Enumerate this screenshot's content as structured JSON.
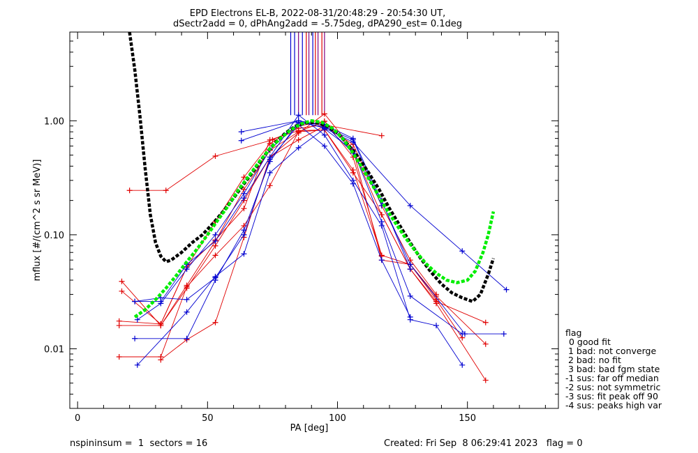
{
  "header": {
    "title_line1": "EPD Electrons EL-B, 2022-08-31/20:48:29 - 20:54:30 UT,",
    "title_line2": "dSectr2add = 0, dPhAng2add = -5.75deg, dPA290_est=   0.1deg"
  },
  "footer": {
    "left": "nspininsum =  1  sectors = 16",
    "right": "Created: Fri Sep  8 06:29:41 2023   flag = 0"
  },
  "legend": {
    "title": "flag",
    "items": [
      "0 good fit",
      " 1 bad: not converge",
      " 2 bad: no fit",
      " 3 bad: bad fgm state",
      "-1 sus: far off median",
      "-2 sus: not symmetric",
      "-3 sus: fit peak off 90",
      "-4 sus: peaks high var"
    ]
  },
  "colors": {
    "red": "#e00000",
    "blue": "#0000d0",
    "purple": "#800080",
    "black_fit": "#000000",
    "green_fit": "#00ee00"
  },
  "chart_data": {
    "type": "line",
    "xlabel": "PA [deg]",
    "ylabel": "mflux [#/(cm^2 s sr MeV)]",
    "xlim": [
      -3,
      185
    ],
    "ylim": [
      0.003,
      6.0
    ],
    "yscale": "log",
    "xticks": [
      0,
      50,
      100,
      150
    ],
    "xtick_labels": [
      "0",
      "50",
      "100",
      "150"
    ],
    "yticks": [
      0.01,
      0.1,
      1.0
    ],
    "ytick_labels": [
      "0.01",
      "0.10",
      "1.00"
    ],
    "series": [
      {
        "color": "red",
        "x": [
          20,
          34,
          53,
          75,
          85,
          95,
          117
        ],
        "y": [
          0.245,
          0.245,
          0.49,
          0.68,
          0.86,
          0.92,
          0.74
        ]
      },
      {
        "color": "red",
        "x": [
          16,
          32,
          42,
          53,
          64,
          74,
          85,
          95,
          106,
          117,
          128,
          138,
          148
        ],
        "y": [
          0.016,
          0.016,
          0.036,
          0.088,
          0.25,
          0.55,
          0.8,
          0.99,
          0.48,
          0.066,
          0.055,
          0.027,
          0.0125
        ]
      },
      {
        "color": "red",
        "x": [
          16,
          32,
          42,
          53,
          64,
          74,
          85,
          95,
          106,
          117,
          128,
          138,
          157
        ],
        "y": [
          0.0175,
          0.0165,
          0.052,
          0.13,
          0.32,
          0.63,
          0.9,
          0.99,
          0.55,
          0.15,
          0.05,
          0.025,
          0.0053
        ]
      },
      {
        "color": "red",
        "x": [
          17,
          32,
          42,
          53,
          64,
          74,
          85,
          95,
          106,
          117,
          128,
          138,
          157
        ],
        "y": [
          0.039,
          0.016,
          0.034,
          0.08,
          0.2,
          0.48,
          0.78,
          1.15,
          0.56,
          0.06,
          0.055,
          0.029,
          0.011
        ]
      },
      {
        "color": "red",
        "x": [
          16,
          32,
          42,
          53,
          64,
          74,
          85,
          95,
          106,
          117,
          128,
          138,
          157
        ],
        "y": [
          0.0085,
          0.0085,
          0.035,
          0.066,
          0.12,
          0.27,
          0.8,
          0.83,
          0.35,
          0.15,
          0.05,
          0.026,
          0.017
        ]
      },
      {
        "color": "red",
        "x": [
          17,
          32,
          42,
          53,
          64,
          74,
          85,
          95,
          106,
          117
        ],
        "y": [
          0.032,
          0.0165,
          0.052,
          0.09,
          0.17,
          0.68,
          0.82,
          0.83,
          0.37,
          0.065
        ]
      },
      {
        "color": "red",
        "x": [
          32,
          42,
          53,
          64,
          74,
          85,
          95,
          106,
          117,
          128,
          138
        ],
        "y": [
          0.008,
          0.012,
          0.017,
          0.095,
          0.48,
          0.68,
          0.9,
          0.62,
          0.18,
          0.06,
          0.03
        ]
      },
      {
        "color": "blue",
        "x": [
          63,
          85,
          95,
          106,
          128,
          148,
          165
        ],
        "y": [
          0.8,
          1.0,
          0.86,
          0.65,
          0.18,
          0.072,
          0.033
        ]
      },
      {
        "color": "blue",
        "x": [
          63,
          85,
          95,
          106,
          128,
          149,
          164
        ],
        "y": [
          0.67,
          1.0,
          0.92,
          0.7,
          0.055,
          0.0135,
          0.0135
        ]
      },
      {
        "color": "blue",
        "x": [
          22,
          32,
          42,
          53,
          64,
          74,
          85,
          95,
          106,
          117,
          128,
          138,
          148
        ],
        "y": [
          0.026,
          0.026,
          0.055,
          0.088,
          0.21,
          0.48,
          1.12,
          0.75,
          0.3,
          0.12,
          0.018,
          0.016,
          0.0072
        ]
      },
      {
        "color": "blue",
        "x": [
          23,
          42,
          53,
          64,
          74,
          85,
          95,
          106,
          117,
          128,
          148
        ],
        "y": [
          0.0072,
          0.021,
          0.043,
          0.068,
          0.35,
          0.58,
          0.85,
          0.55,
          0.13,
          0.029,
          0.0135
        ]
      },
      {
        "color": "blue",
        "x": [
          22,
          42,
          53,
          64,
          74,
          85,
          95,
          106,
          117
        ],
        "y": [
          0.0123,
          0.0123,
          0.04,
          0.11,
          0.44,
          0.97,
          0.88,
          0.68,
          0.18
        ]
      },
      {
        "color": "blue",
        "x": [
          22,
          32,
          42,
          53,
          64,
          74,
          85,
          95,
          106,
          117,
          128
        ],
        "y": [
          0.026,
          0.028,
          0.027,
          0.042,
          0.1,
          0.46,
          0.92,
          0.6,
          0.28,
          0.06,
          0.019
        ]
      },
      {
        "color": "blue",
        "x": [
          23,
          32,
          42,
          53,
          64,
          74,
          85,
          95,
          106,
          117,
          128
        ],
        "y": [
          0.018,
          0.025,
          0.05,
          0.1,
          0.23,
          0.56,
          0.95,
          0.93,
          0.52,
          0.2,
          0.05
        ]
      }
    ],
    "fits": [
      {
        "color": "black_fit",
        "x": [
          20,
          22,
          24,
          26,
          28,
          30,
          32,
          34,
          36,
          40,
          44,
          48,
          52,
          56,
          60,
          64,
          68,
          72,
          76,
          80,
          84,
          88,
          90,
          92,
          96,
          100,
          104,
          108,
          112,
          116,
          120,
          124,
          128,
          132,
          136,
          140,
          144,
          148,
          152,
          155,
          158,
          160
        ],
        "y": [
          6.0,
          2.8,
          1.1,
          0.38,
          0.15,
          0.085,
          0.065,
          0.058,
          0.06,
          0.07,
          0.085,
          0.1,
          0.125,
          0.16,
          0.21,
          0.28,
          0.37,
          0.5,
          0.64,
          0.78,
          0.9,
          0.96,
          0.97,
          0.96,
          0.9,
          0.78,
          0.62,
          0.48,
          0.35,
          0.25,
          0.17,
          0.12,
          0.085,
          0.062,
          0.047,
          0.037,
          0.031,
          0.028,
          0.026,
          0.03,
          0.045,
          0.062
        ]
      },
      {
        "color": "green_fit",
        "x": [
          22,
          26,
          30,
          34,
          38,
          42,
          46,
          50,
          54,
          58,
          62,
          66,
          70,
          74,
          78,
          82,
          86,
          90,
          94,
          98,
          102,
          106,
          110,
          114,
          118,
          122,
          126,
          130,
          134,
          138,
          142,
          146,
          150,
          153,
          156,
          158,
          160
        ],
        "y": [
          0.019,
          0.022,
          0.027,
          0.034,
          0.044,
          0.058,
          0.075,
          0.1,
          0.135,
          0.18,
          0.25,
          0.33,
          0.44,
          0.57,
          0.7,
          0.83,
          0.94,
          1.0,
          0.97,
          0.86,
          0.7,
          0.52,
          0.37,
          0.26,
          0.18,
          0.13,
          0.095,
          0.072,
          0.056,
          0.046,
          0.04,
          0.038,
          0.04,
          0.048,
          0.07,
          0.1,
          0.16
        ]
      }
    ],
    "marker_lines": [
      {
        "color": "blue",
        "x": 82
      },
      {
        "color": "blue",
        "x": 83.5
      },
      {
        "color": "purple",
        "x": 85
      },
      {
        "color": "blue",
        "x": 86.5
      },
      {
        "color": "red",
        "x": 88
      },
      {
        "color": "purple",
        "x": 89
      },
      {
        "color": "blue",
        "x": 90.5
      },
      {
        "color": "red",
        "x": 91.5
      },
      {
        "color": "purple",
        "x": 92.5
      },
      {
        "color": "red",
        "x": 94
      },
      {
        "color": "purple",
        "x": 95
      }
    ],
    "marker_line_top_y": 6.0,
    "marker_line_bottom_y": 1.12
  }
}
